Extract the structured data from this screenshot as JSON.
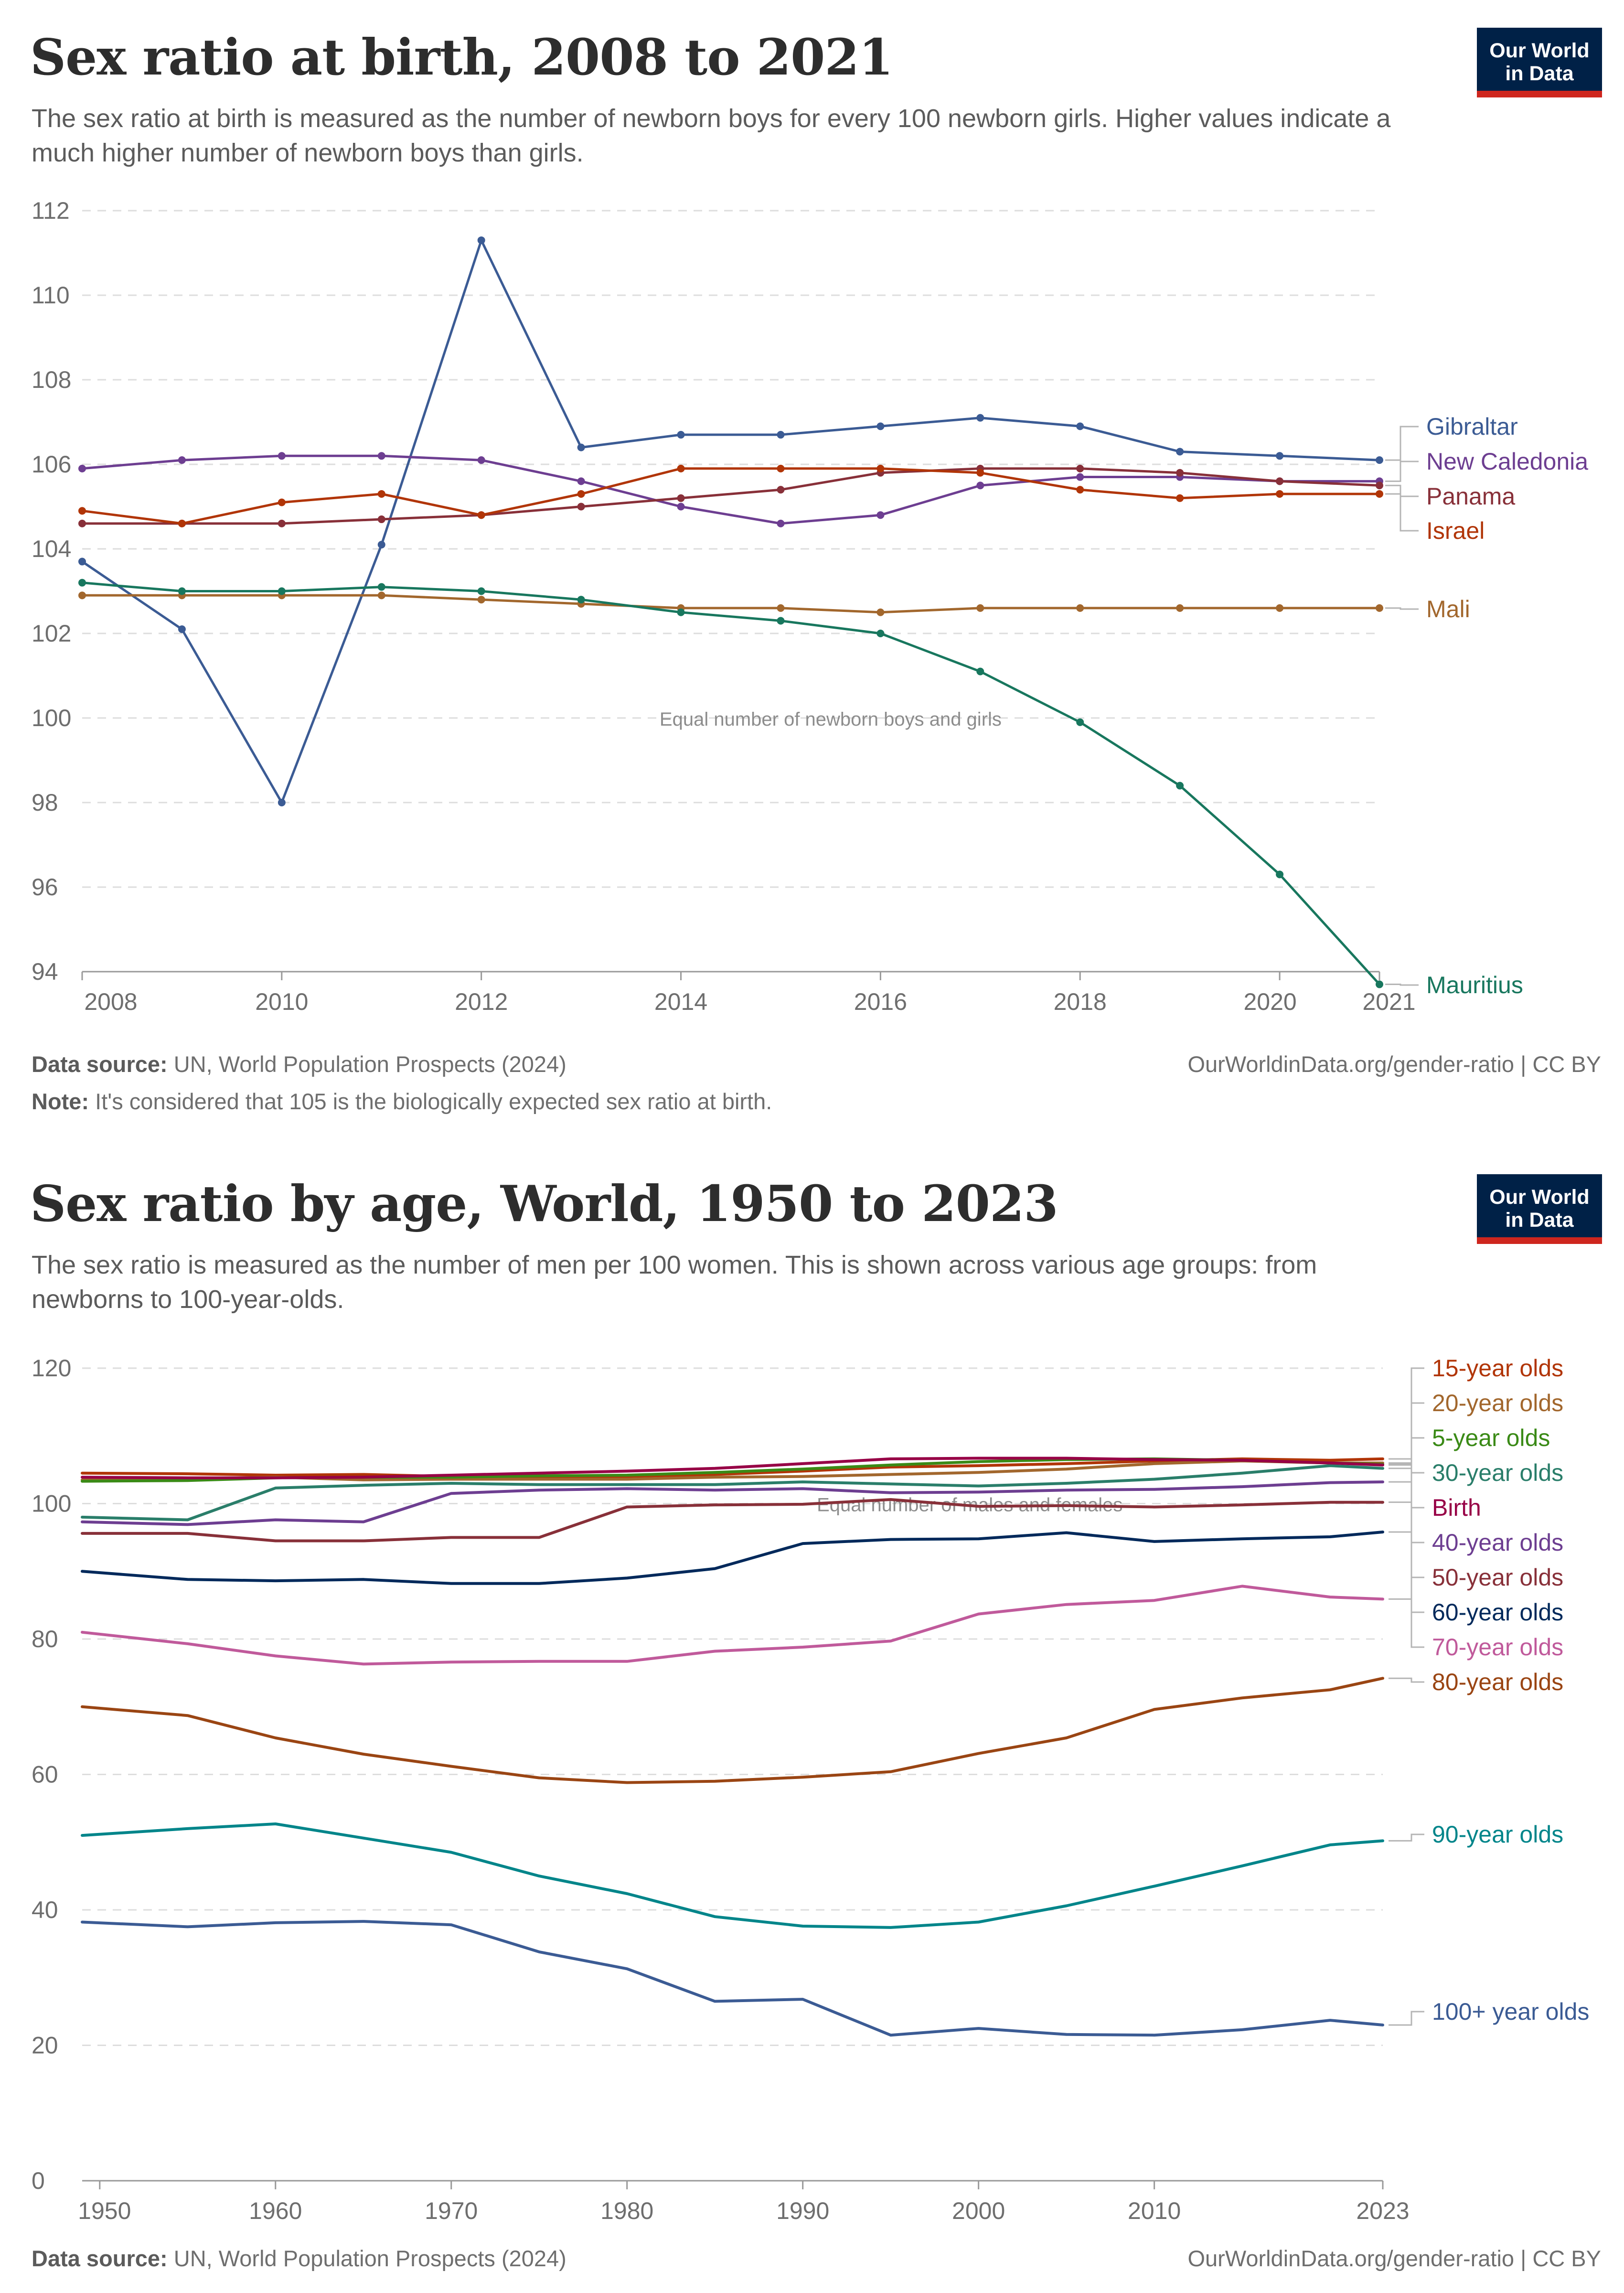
{
  "colors": {
    "gibraltar": "#3b5b94",
    "new_caledonia": "#6d3e91",
    "panama": "#883039",
    "israel": "#b13507",
    "mali": "#a2672d",
    "mauritius": "#18775e",
    "grid": "#dddddd",
    "axis_text": "#6e6e6e",
    "logo_bg": "#002147",
    "logo_bar": "#ce261e"
  },
  "logo": {
    "line1": "Our World",
    "line2": "in Data"
  },
  "panel1": {
    "title": "Sex ratio at birth, 2008 to 2021",
    "subtitle": "The sex ratio at birth is measured as the number of newborn boys for every 100 newborn girls. Higher values indicate a much higher number of newborn boys than girls.",
    "footer": {
      "source_label": "Data source:",
      "source_text": "UN, World Population Prospects (2024)",
      "url": "OurWorldinData.org/gender-ratio | CC BY",
      "note_label": "Note:",
      "note_text": "It's considered that 105 is the biologically expected sex ratio at birth."
    }
  },
  "panel2": {
    "title": "Sex ratio by age, World, 1950 to 2023",
    "subtitle": "The sex ratio is measured as the number of men per 100 women. This is shown across various age groups: from newborns to 100-year-olds.",
    "footer": {
      "source_label": "Data source:",
      "source_text": "UN, World Population Prospects (2024)",
      "url": "OurWorldinData.org/gender-ratio | CC BY"
    }
  },
  "chart_data": [
    {
      "type": "line",
      "title": "Sex ratio at birth, 2008 to 2021",
      "xlabel": "",
      "ylabel": "",
      "xlim": [
        2008,
        2021
      ],
      "ylim": [
        94,
        112
      ],
      "x_ticks": [
        "2008",
        "2010",
        "2012",
        "2014",
        "2016",
        "2018",
        "2020",
        "2021"
      ],
      "y_ticks": [
        94,
        96,
        98,
        100,
        102,
        104,
        106,
        108,
        110,
        112
      ],
      "grid": true,
      "legend": "right",
      "annotation": "Equal number of newborn boys and girls",
      "x": [
        2008,
        2009,
        2010,
        2011,
        2012,
        2013,
        2014,
        2015,
        2016,
        2017,
        2018,
        2019,
        2020,
        2021
      ],
      "series": [
        {
          "name": "Gibraltar",
          "color": "#3b5b94",
          "values": [
            103.7,
            102.1,
            98.0,
            104.1,
            111.3,
            106.4,
            106.7,
            106.7,
            106.9,
            107.1,
            106.9,
            106.3,
            106.2,
            106.1
          ]
        },
        {
          "name": "New Caledonia",
          "color": "#6d3e91",
          "values": [
            105.9,
            106.1,
            106.2,
            106.2,
            106.1,
            105.6,
            105.0,
            104.6,
            104.8,
            105.5,
            105.7,
            105.7,
            105.6,
            105.6
          ]
        },
        {
          "name": "Panama",
          "color": "#883039",
          "values": [
            104.6,
            104.6,
            104.6,
            104.7,
            104.8,
            105.0,
            105.2,
            105.4,
            105.8,
            105.9,
            105.9,
            105.8,
            105.6,
            105.5
          ]
        },
        {
          "name": "Israel",
          "color": "#b13507",
          "values": [
            104.9,
            104.6,
            105.1,
            105.3,
            104.8,
            105.3,
            105.9,
            105.9,
            105.9,
            105.8,
            105.4,
            105.2,
            105.3,
            105.3
          ]
        },
        {
          "name": "Mali",
          "color": "#a2672d",
          "values": [
            102.9,
            102.9,
            102.9,
            102.9,
            102.8,
            102.7,
            102.6,
            102.6,
            102.5,
            102.6,
            102.6,
            102.6,
            102.6,
            102.6
          ]
        },
        {
          "name": "Mauritius",
          "color": "#18775e",
          "values": [
            103.2,
            103.0,
            103.0,
            103.1,
            103.0,
            102.8,
            102.5,
            102.3,
            102.0,
            101.1,
            99.9,
            98.4,
            96.3,
            93.7
          ]
        }
      ]
    },
    {
      "type": "line",
      "title": "Sex ratio by age, World, 1950 to 2023",
      "xlabel": "",
      "ylabel": "",
      "xlim": [
        1949,
        2023
      ],
      "ylim": [
        0,
        120
      ],
      "x_ticks": [
        "1950",
        "1960",
        "1970",
        "1980",
        "1990",
        "2000",
        "2010",
        "2023"
      ],
      "y_ticks": [
        0,
        20,
        40,
        60,
        80,
        100,
        120
      ],
      "grid": true,
      "legend": "right",
      "annotation": "Equal number of males and females",
      "x": [
        1949,
        1955,
        1960,
        1965,
        1970,
        1975,
        1980,
        1985,
        1990,
        1995,
        2000,
        2005,
        2010,
        2015,
        2020,
        2023
      ],
      "series": [
        {
          "name": "15-year olds",
          "color": "#b13507",
          "values": [
            104.5,
            104.4,
            104.2,
            104.3,
            104.0,
            104.0,
            104.0,
            104.3,
            104.8,
            105.4,
            105.6,
            105.9,
            106.3,
            106.6,
            106.4,
            106.6
          ]
        },
        {
          "name": "20-year olds",
          "color": "#a2672d",
          "values": [
            103.5,
            103.7,
            103.9,
            103.5,
            103.6,
            103.6,
            103.6,
            103.9,
            104.0,
            104.3,
            104.6,
            105.1,
            105.9,
            106.3,
            106.0,
            106.0
          ]
        },
        {
          "name": "5-year olds",
          "color": "#3a8a16",
          "values": [
            103.3,
            103.4,
            103.8,
            103.9,
            103.9,
            104.1,
            104.2,
            104.6,
            105.1,
            105.7,
            106.2,
            106.5,
            106.6,
            106.4,
            106.0,
            105.8
          ]
        },
        {
          "name": "30-year olds",
          "color": "#2a7e6a",
          "values": [
            98.0,
            97.6,
            102.3,
            102.7,
            103.0,
            102.8,
            102.8,
            102.8,
            103.2,
            102.9,
            102.6,
            103.0,
            103.6,
            104.5,
            105.6,
            105.2
          ]
        },
        {
          "name": "Birth",
          "color": "#970046",
          "values": [
            103.9,
            103.8,
            103.8,
            103.9,
            104.2,
            104.5,
            104.8,
            105.2,
            105.9,
            106.6,
            106.7,
            106.7,
            106.5,
            106.4,
            106.0,
            105.7
          ]
        },
        {
          "name": "40-year olds",
          "color": "#6d3e91",
          "values": [
            97.3,
            96.9,
            97.6,
            97.3,
            101.5,
            102.0,
            102.2,
            102.0,
            102.2,
            101.6,
            101.7,
            102.0,
            102.1,
            102.5,
            103.1,
            103.2
          ]
        },
        {
          "name": "50-year olds",
          "color": "#883039",
          "values": [
            95.6,
            95.6,
            94.5,
            94.5,
            95.0,
            95.0,
            99.5,
            99.8,
            99.9,
            100.6,
            99.6,
            99.7,
            99.5,
            99.8,
            100.2,
            100.2
          ]
        },
        {
          "name": "60-year olds",
          "color": "#00295b",
          "values": [
            90.0,
            88.8,
            88.6,
            88.8,
            88.2,
            88.2,
            89.0,
            90.4,
            94.1,
            94.7,
            94.8,
            95.7,
            94.4,
            94.8,
            95.1,
            95.8
          ]
        },
        {
          "name": "70-year olds",
          "color": "#c05a9b",
          "values": [
            81.0,
            79.3,
            77.5,
            76.3,
            76.6,
            76.7,
            76.7,
            78.2,
            78.8,
            79.7,
            83.7,
            85.1,
            85.7,
            87.8,
            86.2,
            85.9
          ]
        },
        {
          "name": "80-year olds",
          "color": "#9a4513",
          "values": [
            70.0,
            68.7,
            65.4,
            63.0,
            61.2,
            59.5,
            58.8,
            59.0,
            59.6,
            60.4,
            63.1,
            65.4,
            69.6,
            71.3,
            72.5,
            74.2
          ]
        },
        {
          "name": "90-year olds",
          "color": "#00858a",
          "values": [
            51.0,
            52.0,
            52.7,
            50.6,
            48.5,
            45.0,
            42.4,
            39.0,
            37.6,
            37.4,
            38.2,
            40.6,
            43.5,
            46.5,
            49.6,
            50.2
          ]
        },
        {
          "name": "100+ year olds",
          "color": "#3b5b94",
          "values": [
            38.2,
            37.5,
            38.1,
            38.3,
            37.8,
            33.8,
            31.3,
            26.5,
            26.8,
            21.5,
            22.5,
            21.6,
            21.5,
            22.3,
            23.7,
            23.0
          ]
        }
      ]
    }
  ]
}
